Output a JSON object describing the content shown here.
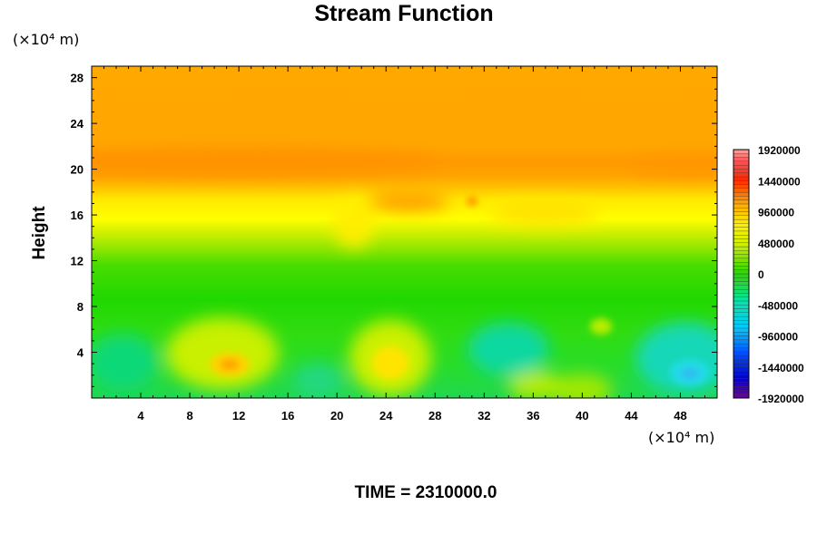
{
  "chart_data": {
    "type": "heatmap",
    "title": "Stream Function",
    "ylabel": "Height",
    "x_unit_label": "(×10⁴ m)",
    "y_unit_label": "(×10⁴ m)",
    "xlim": [
      0,
      51
    ],
    "ylim": [
      0,
      29
    ],
    "x_ticks": [
      "4",
      "8",
      "12",
      "16",
      "20",
      "24",
      "28",
      "32",
      "36",
      "40",
      "44",
      "48"
    ],
    "y_ticks": [
      "4",
      "8",
      "12",
      "16",
      "20",
      "24",
      "28"
    ],
    "colorbar": {
      "range": [
        -1920000,
        1920000
      ],
      "labels": [
        "1920000",
        "1440000",
        "960000",
        "480000",
        "0",
        "-480000",
        "-960000",
        "-1440000",
        "-1920000"
      ]
    },
    "footer": "TIME = 2310000.0"
  }
}
